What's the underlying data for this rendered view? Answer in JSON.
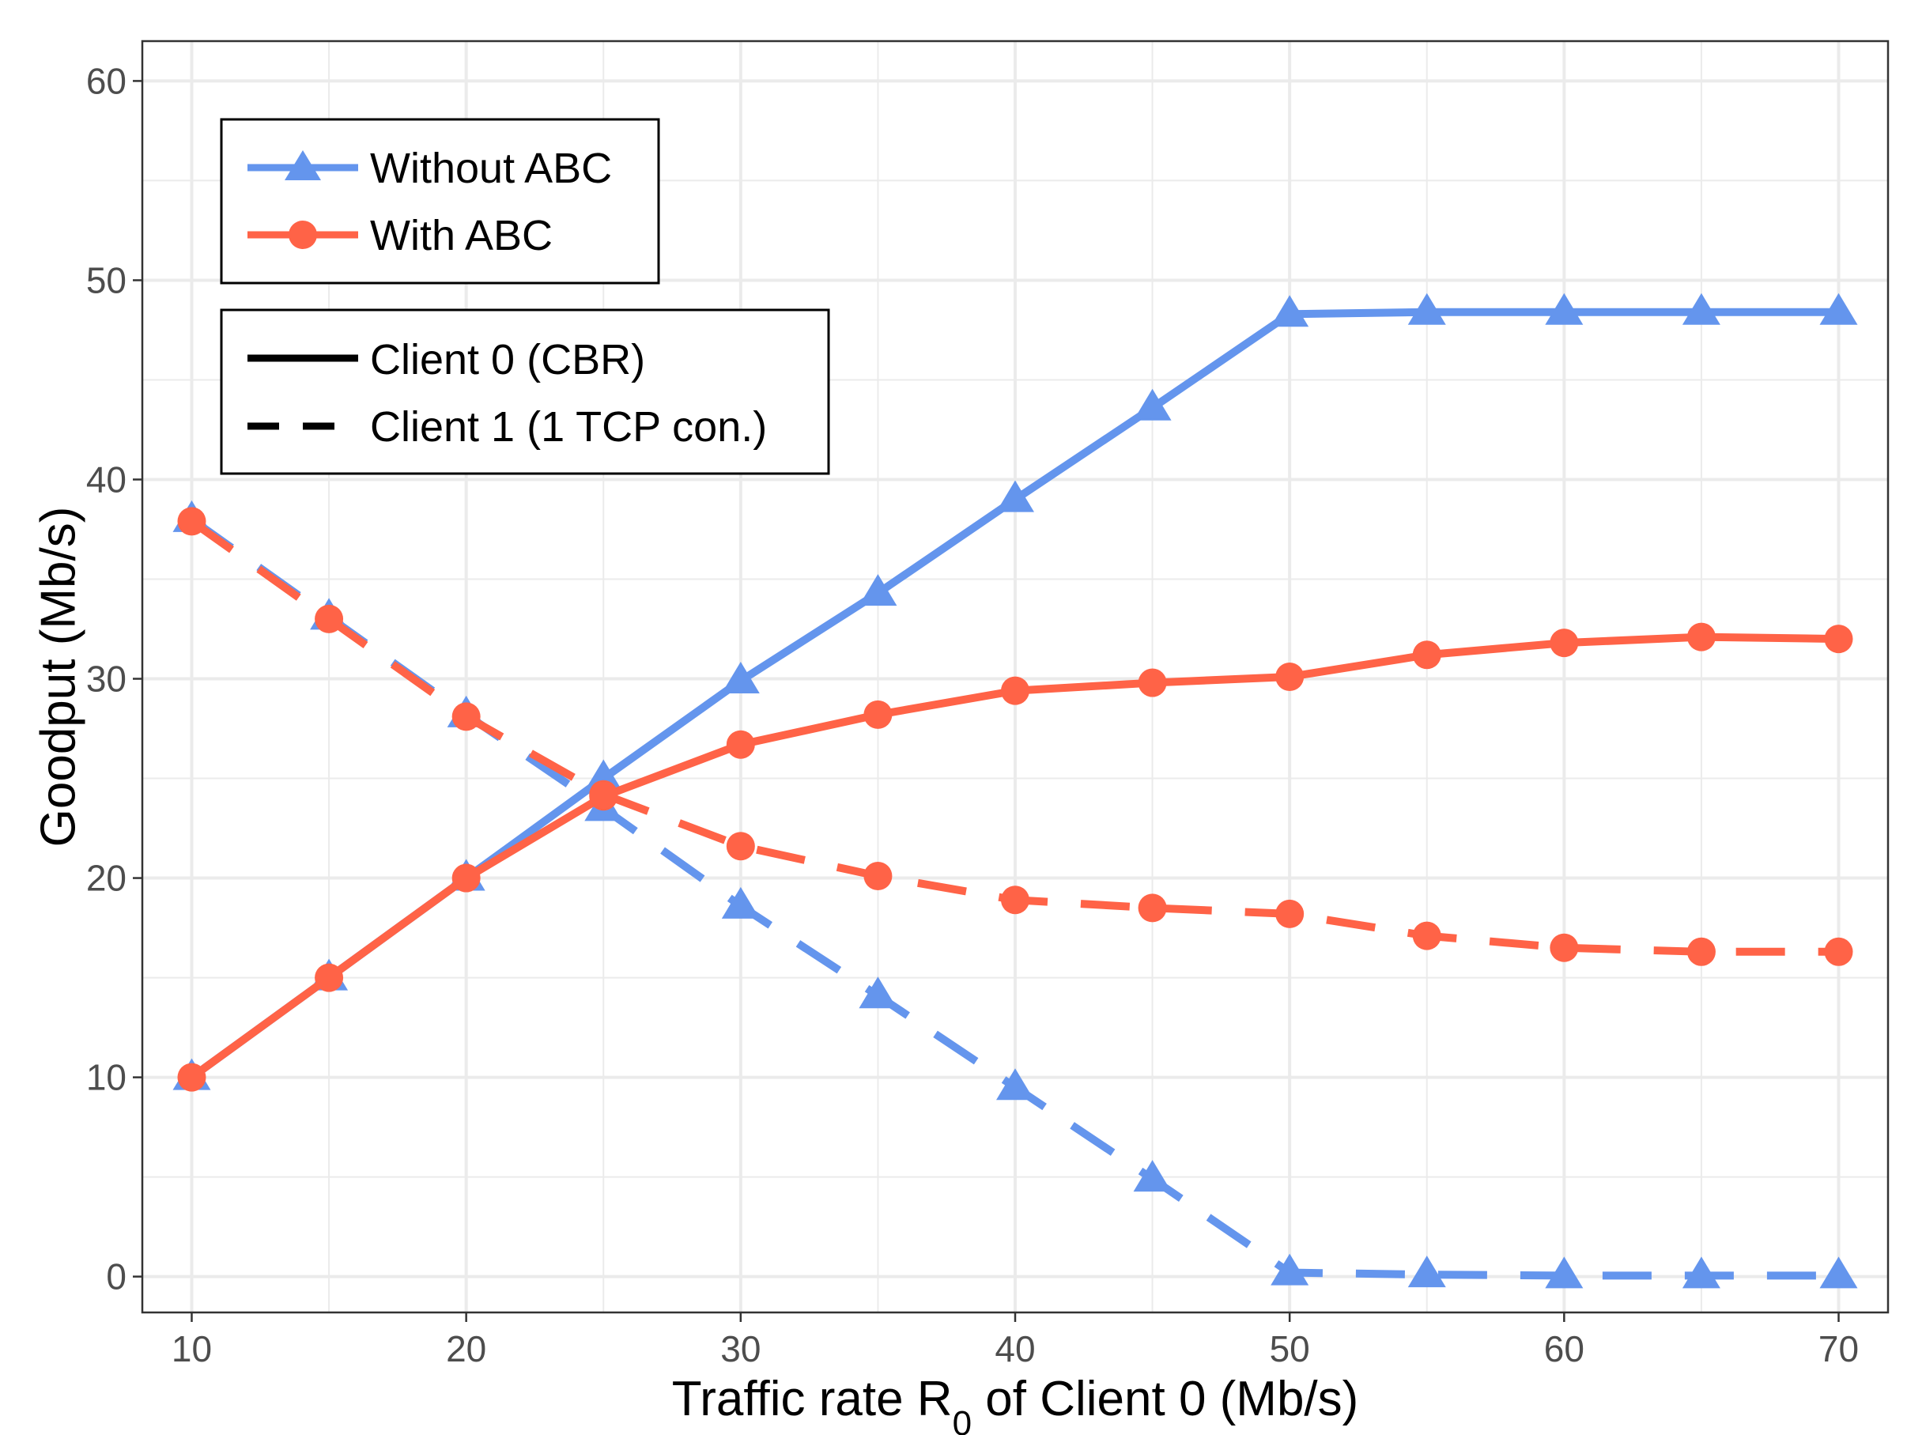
{
  "chart_data": {
    "type": "line",
    "title": "",
    "xlabel": "Traffic rate R",
    "xlabel_sub": "0",
    "xlabel_rest": " of Client 0 (Mb/s)",
    "ylabel": "Goodput (Mb/s)",
    "xlim": [
      8.2,
      71.8
    ],
    "ylim": [
      -1.8,
      62.0
    ],
    "x_ticks": [
      10,
      20,
      30,
      40,
      50,
      60,
      70
    ],
    "y_ticks": [
      0,
      10,
      20,
      30,
      40,
      50,
      60
    ],
    "x_tick_labels": [
      "10",
      "20",
      "30",
      "40",
      "50",
      "60",
      "70"
    ],
    "y_tick_labels": [
      "0",
      "10",
      "20",
      "30",
      "40",
      "50",
      "60"
    ],
    "grid": true,
    "x": [
      10,
      15,
      20,
      25,
      30,
      35,
      40,
      45,
      50,
      55,
      60,
      65,
      70
    ],
    "series": [
      {
        "name": "Without ABC — Client 0 (CBR)",
        "method": "without",
        "client": "client0",
        "values": [
          10.0,
          15.0,
          20.0,
          25.0,
          29.9,
          34.3,
          39.0,
          43.6,
          48.3,
          48.4,
          48.4,
          48.4,
          48.4
        ]
      },
      {
        "name": "Without ABC — Client 1 (1 TCP con.)",
        "method": "without",
        "client": "client1",
        "values": [
          38.0,
          33.1,
          28.2,
          23.5,
          18.6,
          14.1,
          9.5,
          4.9,
          0.2,
          0.1,
          0.05,
          0.05,
          0.05
        ]
      },
      {
        "name": "With ABC — Client 0 (CBR)",
        "method": "with",
        "client": "client0",
        "values": [
          10.0,
          15.0,
          20.0,
          24.1,
          26.7,
          28.2,
          29.4,
          29.8,
          30.1,
          31.2,
          31.8,
          32.1,
          32.0
        ]
      },
      {
        "name": "With ABC — Client 1 (1 TCP con.)",
        "method": "with",
        "client": "client1",
        "values": [
          37.9,
          33.0,
          28.1,
          24.2,
          21.6,
          20.1,
          18.9,
          18.5,
          18.2,
          17.1,
          16.5,
          16.3,
          16.3
        ]
      }
    ],
    "legend_method": {
      "placement": "top-left",
      "entries": [
        {
          "label": "Without ABC",
          "color": "#6495ED",
          "marker": "triangle"
        },
        {
          "label": "With ABC",
          "color": "#FF6347",
          "marker": "circle"
        }
      ]
    },
    "legend_client": {
      "placement": "top-left",
      "entries": [
        {
          "label": "Client 0 (CBR)",
          "line": "solid"
        },
        {
          "label": "Client 1 (1 TCP con.)",
          "line": "dashed"
        }
      ]
    },
    "colors": {
      "without": "#6495ED",
      "with": "#FF6347",
      "grid": "#EBEBEB",
      "frame": "#333333"
    }
  }
}
